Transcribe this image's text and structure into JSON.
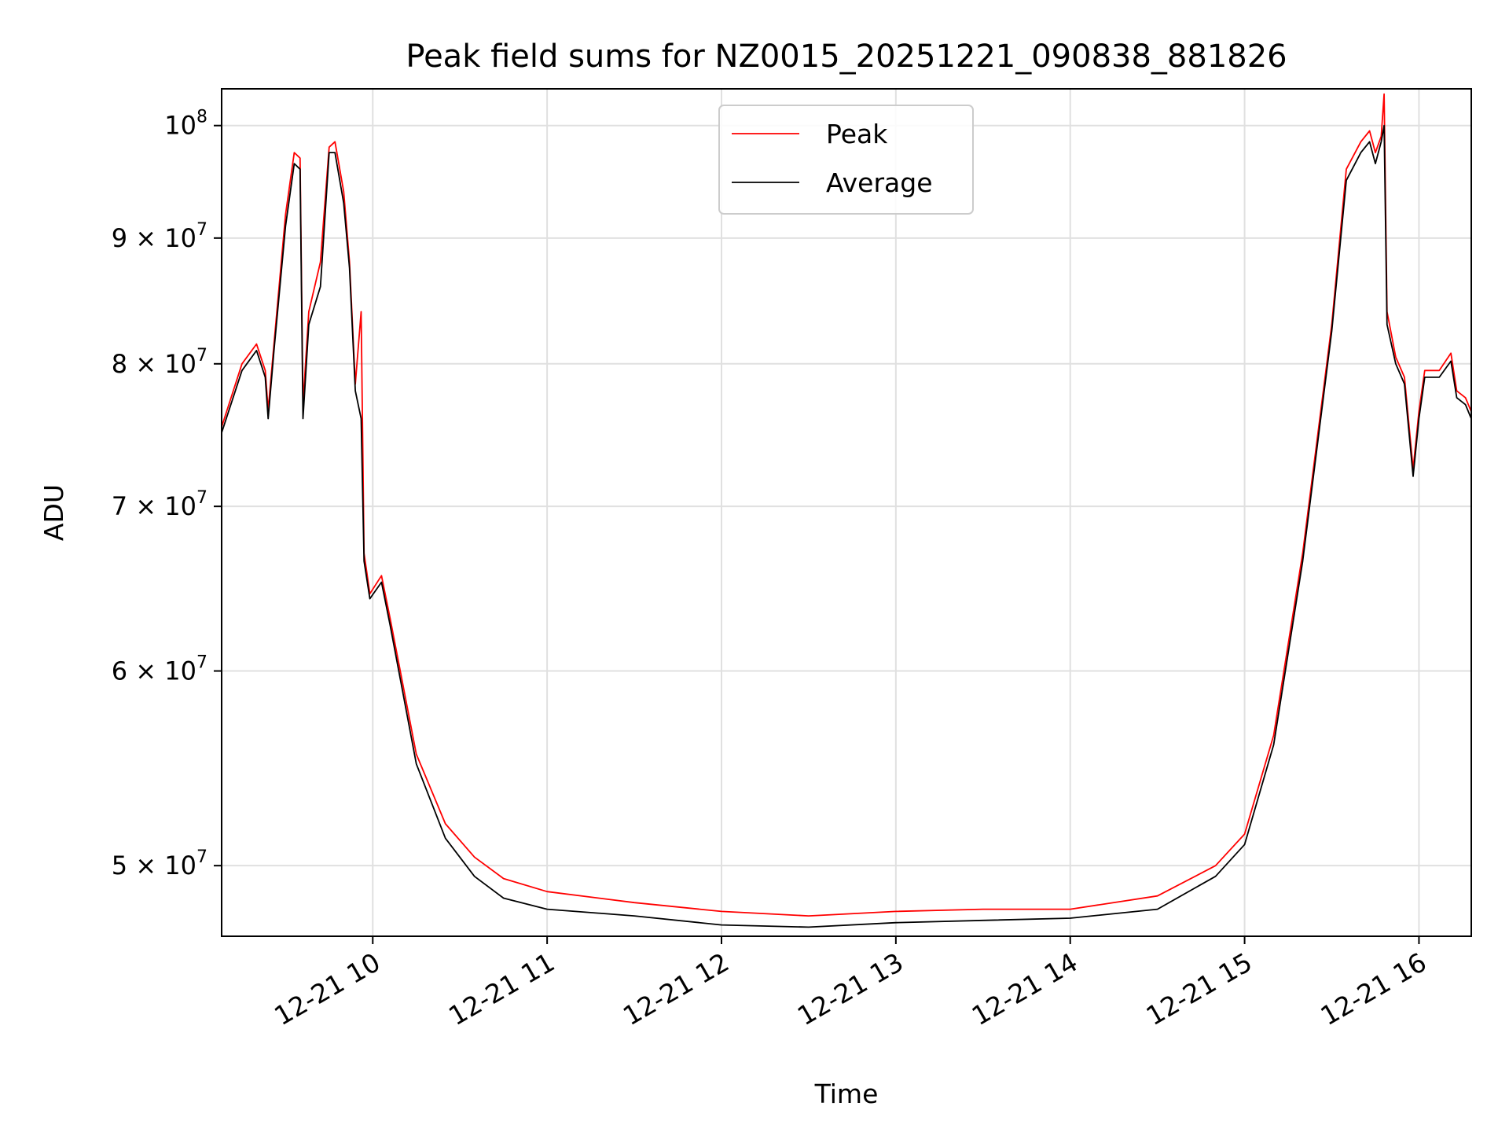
{
  "chart_data": {
    "type": "line",
    "title": "Peak field sums for NZ0015_20251221_090838_881826",
    "xlabel": "Time",
    "ylabel": "ADU",
    "y_scale": "log",
    "xlim": [
      "2025-12-21 09:08",
      "2025-12-21 16:18"
    ],
    "ylim": [
      46800000,
      103500000
    ],
    "grid": true,
    "legend_position": "upper center",
    "x_ticks": [
      {
        "t": "2025-12-21 10:00",
        "label": "12-21 10"
      },
      {
        "t": "2025-12-21 11:00",
        "label": "12-21 11"
      },
      {
        "t": "2025-12-21 12:00",
        "label": "12-21 12"
      },
      {
        "t": "2025-12-21 13:00",
        "label": "12-21 13"
      },
      {
        "t": "2025-12-21 14:00",
        "label": "12-21 14"
      },
      {
        "t": "2025-12-21 15:00",
        "label": "12-21 15"
      },
      {
        "t": "2025-12-21 16:00",
        "label": "12-21 16"
      }
    ],
    "y_ticks": [
      {
        "value": 50000000,
        "base": "5 × 10",
        "exp": "7"
      },
      {
        "value": 60000000,
        "base": "6 × 10",
        "exp": "7"
      },
      {
        "value": 70000000,
        "base": "7 × 10",
        "exp": "7"
      },
      {
        "value": 80000000,
        "base": "8 × 10",
        "exp": "7"
      },
      {
        "value": 90000000,
        "base": "9 × 10",
        "exp": "7"
      },
      {
        "value": 100000000,
        "base": "10",
        "exp": "8"
      }
    ],
    "series": [
      {
        "name": "Peak",
        "color": "#ff0000",
        "points": [
          [
            "2025-12-21 09:08",
            75400000
          ],
          [
            "2025-12-21 09:15",
            80000000
          ],
          [
            "2025-12-21 09:20",
            81500000
          ],
          [
            "2025-12-21 09:23",
            79500000
          ],
          [
            "2025-12-21 09:24",
            76600000
          ],
          [
            "2025-12-21 09:26",
            81500000
          ],
          [
            "2025-12-21 09:30",
            92000000
          ],
          [
            "2025-12-21 09:33",
            97500000
          ],
          [
            "2025-12-21 09:35",
            97000000
          ],
          [
            "2025-12-21 09:36",
            77000000
          ],
          [
            "2025-12-21 09:38",
            84000000
          ],
          [
            "2025-12-21 09:42",
            88000000
          ],
          [
            "2025-12-21 09:45",
            98000000
          ],
          [
            "2025-12-21 09:47",
            98500000
          ],
          [
            "2025-12-21 09:50",
            94000000
          ],
          [
            "2025-12-21 09:52",
            88000000
          ],
          [
            "2025-12-21 09:54",
            78500000
          ],
          [
            "2025-12-21 09:56",
            84000000
          ],
          [
            "2025-12-21 09:57",
            67000000
          ],
          [
            "2025-12-21 09:59",
            64500000
          ],
          [
            "2025-12-21 10:03",
            65600000
          ],
          [
            "2025-12-21 10:06",
            63000000
          ],
          [
            "2025-12-21 10:15",
            55500000
          ],
          [
            "2025-12-21 10:25",
            52000000
          ],
          [
            "2025-12-21 10:35",
            50400000
          ],
          [
            "2025-12-21 10:45",
            49400000
          ],
          [
            "2025-12-21 11:00",
            48800000
          ],
          [
            "2025-12-21 11:30",
            48300000
          ],
          [
            "2025-12-21 12:00",
            47900000
          ],
          [
            "2025-12-21 12:30",
            47700000
          ],
          [
            "2025-12-21 13:00",
            47900000
          ],
          [
            "2025-12-21 13:30",
            48000000
          ],
          [
            "2025-12-21 14:00",
            48000000
          ],
          [
            "2025-12-21 14:30",
            48600000
          ],
          [
            "2025-12-21 14:50",
            50000000
          ],
          [
            "2025-12-21 15:00",
            51500000
          ],
          [
            "2025-12-21 15:10",
            56500000
          ],
          [
            "2025-12-21 15:20",
            67000000
          ],
          [
            "2025-12-21 15:30",
            83000000
          ],
          [
            "2025-12-21 15:35",
            96000000
          ],
          [
            "2025-12-21 15:40",
            98500000
          ],
          [
            "2025-12-21 15:43",
            99500000
          ],
          [
            "2025-12-21 15:45",
            97500000
          ],
          [
            "2025-12-21 15:47",
            99000000
          ],
          [
            "2025-12-21 15:48",
            103000000
          ],
          [
            "2025-12-21 15:49",
            84000000
          ],
          [
            "2025-12-21 15:52",
            80500000
          ],
          [
            "2025-12-21 15:55",
            79000000
          ],
          [
            "2025-12-21 15:58",
            72500000
          ],
          [
            "2025-12-21 16:00",
            76500000
          ],
          [
            "2025-12-21 16:02",
            79500000
          ],
          [
            "2025-12-21 16:07",
            79500000
          ],
          [
            "2025-12-21 16:11",
            80800000
          ],
          [
            "2025-12-21 16:13",
            78000000
          ],
          [
            "2025-12-21 16:16",
            77500000
          ],
          [
            "2025-12-21 16:18",
            76500000
          ]
        ]
      },
      {
        "name": "Average",
        "color": "#000000",
        "points": [
          [
            "2025-12-21 09:08",
            75000000
          ],
          [
            "2025-12-21 09:15",
            79500000
          ],
          [
            "2025-12-21 09:20",
            81000000
          ],
          [
            "2025-12-21 09:23",
            79000000
          ],
          [
            "2025-12-21 09:24",
            76000000
          ],
          [
            "2025-12-21 09:26",
            81000000
          ],
          [
            "2025-12-21 09:30",
            91000000
          ],
          [
            "2025-12-21 09:33",
            96500000
          ],
          [
            "2025-12-21 09:35",
            96000000
          ],
          [
            "2025-12-21 09:36",
            76000000
          ],
          [
            "2025-12-21 09:38",
            83000000
          ],
          [
            "2025-12-21 09:42",
            86000000
          ],
          [
            "2025-12-21 09:45",
            97500000
          ],
          [
            "2025-12-21 09:47",
            97500000
          ],
          [
            "2025-12-21 09:50",
            93000000
          ],
          [
            "2025-12-21 09:52",
            87500000
          ],
          [
            "2025-12-21 09:54",
            78000000
          ],
          [
            "2025-12-21 09:56",
            76000000
          ],
          [
            "2025-12-21 09:57",
            66500000
          ],
          [
            "2025-12-21 09:59",
            64200000
          ],
          [
            "2025-12-21 10:03",
            65200000
          ],
          [
            "2025-12-21 10:06",
            62600000
          ],
          [
            "2025-12-21 10:15",
            55000000
          ],
          [
            "2025-12-21 10:25",
            51300000
          ],
          [
            "2025-12-21 10:35",
            49500000
          ],
          [
            "2025-12-21 10:45",
            48500000
          ],
          [
            "2025-12-21 11:00",
            48000000
          ],
          [
            "2025-12-21 11:30",
            47700000
          ],
          [
            "2025-12-21 12:00",
            47300000
          ],
          [
            "2025-12-21 12:30",
            47200000
          ],
          [
            "2025-12-21 13:00",
            47400000
          ],
          [
            "2025-12-21 13:30",
            47500000
          ],
          [
            "2025-12-21 14:00",
            47600000
          ],
          [
            "2025-12-21 14:30",
            48000000
          ],
          [
            "2025-12-21 14:50",
            49500000
          ],
          [
            "2025-12-21 15:00",
            51000000
          ],
          [
            "2025-12-21 15:10",
            56000000
          ],
          [
            "2025-12-21 15:20",
            66500000
          ],
          [
            "2025-12-21 15:30",
            82500000
          ],
          [
            "2025-12-21 15:35",
            95000000
          ],
          [
            "2025-12-21 15:40",
            97500000
          ],
          [
            "2025-12-21 15:43",
            98500000
          ],
          [
            "2025-12-21 15:45",
            96500000
          ],
          [
            "2025-12-21 15:47",
            98500000
          ],
          [
            "2025-12-21 15:48",
            100000000
          ],
          [
            "2025-12-21 15:49",
            83000000
          ],
          [
            "2025-12-21 15:52",
            80000000
          ],
          [
            "2025-12-21 15:55",
            78500000
          ],
          [
            "2025-12-21 15:58",
            72000000
          ],
          [
            "2025-12-21 16:00",
            76000000
          ],
          [
            "2025-12-21 16:02",
            79000000
          ],
          [
            "2025-12-21 16:07",
            79000000
          ],
          [
            "2025-12-21 16:11",
            80200000
          ],
          [
            "2025-12-21 16:13",
            77500000
          ],
          [
            "2025-12-21 16:16",
            77000000
          ],
          [
            "2025-12-21 16:18",
            76000000
          ]
        ]
      }
    ]
  }
}
